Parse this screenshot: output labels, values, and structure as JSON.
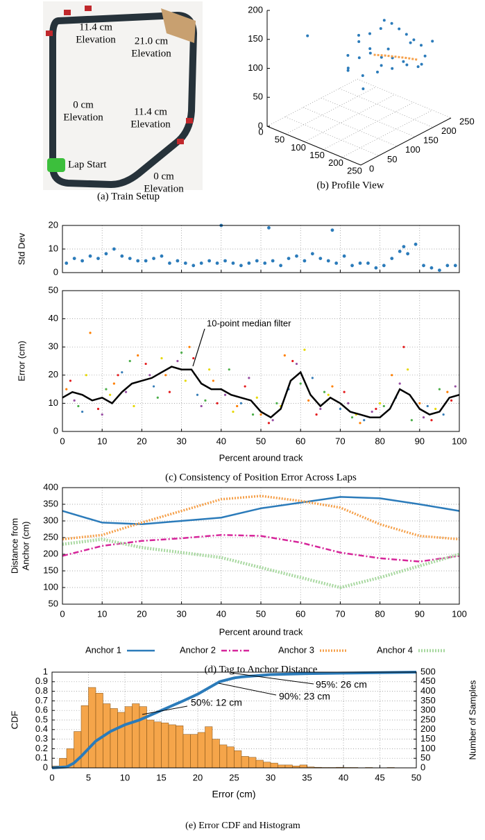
{
  "photo": {
    "labels": [
      [
        "11.4 cm",
        "Elevation"
      ],
      [
        "21.0 cm",
        "Elevation"
      ],
      [
        "0 cm",
        "Elevation"
      ],
      [
        "11.4 cm",
        "Elevation"
      ],
      [
        "Lap Start"
      ],
      [
        "0 cm",
        "Elevation"
      ]
    ],
    "caption": "(a) Train Setup"
  },
  "chart_data": [
    {
      "type": "scatter3d",
      "caption": "(b) Profile View",
      "xlim": [
        0,
        250
      ],
      "ylim": [
        0,
        250
      ],
      "zlim": [
        0,
        200
      ],
      "xticks": [
        0,
        50,
        100,
        150,
        200,
        250
      ],
      "yticks": [
        0,
        50,
        100,
        150,
        200,
        250
      ],
      "zticks": [
        0,
        50,
        100,
        150,
        200
      ],
      "grid": true,
      "series": [
        {
          "color": "#2b7bba",
          "mode": "markers",
          "x": [
            50,
            100,
            110,
            120,
            130,
            140,
            150,
            160,
            170,
            180,
            200,
            210,
            220,
            200,
            190,
            180,
            160,
            140,
            120,
            110,
            130,
            150,
            170,
            190,
            150,
            130,
            170,
            190,
            100,
            120,
            210,
            160
          ],
          "y": [
            60,
            120,
            140,
            160,
            180,
            200,
            210,
            220,
            230,
            240,
            230,
            210,
            190,
            170,
            150,
            130,
            120,
            110,
            100,
            110,
            130,
            150,
            170,
            190,
            180,
            150,
            140,
            200,
            150,
            200,
            240,
            100
          ],
          "z": [
            150,
            110,
            130,
            140,
            145,
            150,
            140,
            130,
            120,
            110,
            100,
            95,
            100,
            110,
            120,
            125,
            130,
            120,
            100,
            90,
            80,
            85,
            90,
            95,
            115,
            120,
            105,
            130,
            135,
            150,
            125,
            75
          ]
        },
        {
          "color": "#f5a04a",
          "mode": "line",
          "x": [
            140,
            155,
            170,
            185,
            200
          ],
          "y": [
            150,
            165,
            180,
            195,
            210
          ],
          "z": [
            112,
            110,
            107,
            104,
            100
          ]
        }
      ]
    },
    {
      "type": "scatter",
      "ylabel": "Std Dev",
      "xlim": [
        0,
        100
      ],
      "ylim": [
        0,
        20
      ],
      "xticks": [
        0,
        10,
        20,
        30,
        40,
        50,
        60,
        70,
        80,
        90,
        100
      ],
      "yticks": [
        0,
        10,
        20
      ],
      "grid": true,
      "series": [
        {
          "color": "#2b7bba",
          "x": [
            1,
            3,
            5,
            7,
            9,
            11,
            13,
            15,
            17,
            19,
            21,
            23,
            25,
            27,
            29,
            31,
            33,
            35,
            37,
            39,
            40,
            41,
            43,
            45,
            47,
            49,
            51,
            52,
            53,
            55,
            57,
            59,
            61,
            63,
            65,
            67,
            68,
            69,
            71,
            73,
            75,
            77,
            79,
            81,
            83,
            85,
            86,
            87,
            89,
            91,
            93,
            95,
            97,
            99
          ],
          "values": [
            4,
            6,
            5,
            7,
            6,
            8,
            10,
            7,
            6,
            5,
            5,
            6,
            7,
            4,
            5,
            4,
            3,
            4,
            5,
            4,
            20,
            5,
            4,
            3,
            4,
            5,
            4,
            19,
            5,
            3,
            6,
            7,
            5,
            8,
            6,
            5,
            18,
            4,
            7,
            3,
            4,
            4,
            2,
            3,
            6,
            9,
            11,
            8,
            12,
            3,
            2,
            1,
            3,
            3
          ]
        }
      ]
    },
    {
      "type": "scatter",
      "ylabel": "Error (cm)",
      "xlabel": "Percent around track",
      "caption": "(c) Consistency of Position Error Across Laps",
      "annotation": "10-point median filter",
      "xlim": [
        0,
        100
      ],
      "ylim": [
        0,
        50
      ],
      "xticks": [
        0,
        10,
        20,
        30,
        40,
        50,
        60,
        70,
        80,
        90,
        100
      ],
      "yticks": [
        0,
        10,
        20,
        30,
        40,
        50
      ],
      "grid": true,
      "series": [
        {
          "color": "#e41a1c",
          "x": [
            2,
            9,
            14,
            21,
            27,
            33,
            39,
            46,
            52,
            58,
            64,
            71,
            79,
            86,
            93,
            98
          ],
          "values": [
            18,
            8,
            20,
            24,
            14,
            26,
            10,
            16,
            3,
            25,
            6,
            14,
            8,
            30,
            4,
            11
          ]
        },
        {
          "color": "#4daf4a",
          "x": [
            4,
            11,
            17,
            24,
            30,
            36,
            42,
            48,
            54,
            60,
            66,
            73,
            81,
            88,
            95
          ],
          "values": [
            9,
            15,
            25,
            12,
            28,
            11,
            22,
            6,
            10,
            17,
            14,
            5,
            9,
            4,
            15
          ]
        },
        {
          "color": "#ff7f00",
          "x": [
            1,
            7,
            13,
            19,
            26,
            32,
            38,
            44,
            50,
            56,
            62,
            68,
            75,
            83,
            90,
            97
          ],
          "values": [
            15,
            35,
            17,
            27,
            20,
            30,
            18,
            9,
            6,
            27,
            11,
            16,
            3,
            20,
            10,
            14
          ]
        },
        {
          "color": "#984ea3",
          "x": [
            3,
            10,
            16,
            22,
            29,
            35,
            41,
            47,
            53,
            59,
            65,
            72,
            78,
            85,
            91,
            99
          ],
          "values": [
            11,
            6,
            14,
            20,
            25,
            9,
            13,
            19,
            4,
            24,
            8,
            10,
            7,
            17,
            5,
            16
          ]
        },
        {
          "color": "#e6d800",
          "x": [
            6,
            12,
            18,
            25,
            31,
            37,
            43,
            49,
            55,
            61,
            67,
            74,
            80,
            87,
            94
          ],
          "values": [
            20,
            13,
            9,
            26,
            18,
            22,
            7,
            12,
            9,
            29,
            13,
            6,
            10,
            22,
            8
          ]
        },
        {
          "color": "#377eb8",
          "x": [
            5,
            15,
            23,
            34,
            45,
            57,
            63,
            70,
            76,
            84,
            92,
            96
          ],
          "values": [
            7,
            21,
            16,
            13,
            10,
            15,
            19,
            8,
            4,
            12,
            9,
            6
          ]
        }
      ],
      "median": {
        "color": "#000000",
        "x": [
          0,
          2.5,
          5,
          7.5,
          10,
          12.5,
          15,
          17.5,
          20,
          22.5,
          25,
          27.5,
          30,
          32.5,
          35,
          37.5,
          40,
          42.5,
          45,
          47.5,
          50,
          52.5,
          55,
          57.5,
          60,
          62.5,
          65,
          67.5,
          70,
          72.5,
          75,
          77.5,
          80,
          82.5,
          85,
          87.5,
          90,
          92.5,
          95,
          97.5,
          100
        ],
        "values": [
          12,
          14,
          13,
          11,
          12,
          10,
          14,
          17,
          18,
          19,
          21,
          23,
          22,
          22,
          17,
          15,
          15,
          13,
          12,
          11,
          7,
          5,
          8,
          18,
          21,
          13,
          9,
          12,
          10,
          7,
          6,
          5,
          5,
          8,
          15,
          13,
          8,
          6,
          7,
          12,
          13
        ]
      }
    },
    {
      "type": "line",
      "ylabel": [
        "Distance from",
        "Anchor (cm)"
      ],
      "xlabel": "Percent around track",
      "caption": "(d) Tag to Anchor Distance",
      "xlim": [
        0,
        100
      ],
      "ylim": [
        50,
        400
      ],
      "xticks": [
        0,
        10,
        20,
        30,
        40,
        50,
        60,
        70,
        80,
        90,
        100
      ],
      "yticks": [
        50,
        100,
        150,
        200,
        250,
        300,
        350,
        400
      ],
      "grid": true,
      "x": [
        0,
        10,
        20,
        30,
        40,
        50,
        60,
        70,
        80,
        90,
        100
      ],
      "series": [
        {
          "name": "Anchor 1",
          "color": "#2b7bba",
          "style": "solid",
          "values": [
            330,
            295,
            290,
            300,
            310,
            338,
            355,
            372,
            368,
            350,
            330
          ]
        },
        {
          "name": "Anchor 2",
          "color": "#d6259a",
          "style": "dashdot",
          "values": [
            195,
            225,
            240,
            248,
            258,
            255,
            235,
            205,
            188,
            178,
            195
          ]
        },
        {
          "name": "Anchor 3",
          "color": "#f5a04a",
          "style": "dotted",
          "values": [
            245,
            258,
            295,
            330,
            365,
            375,
            360,
            340,
            290,
            255,
            245
          ]
        },
        {
          "name": "Anchor 4",
          "color": "#a8d8a0",
          "style": "dotted",
          "values": [
            230,
            245,
            220,
            205,
            190,
            160,
            130,
            100,
            130,
            165,
            200
          ]
        }
      ]
    },
    {
      "type": "histogram",
      "ylabel": "CDF",
      "y2label": "Number of Samples",
      "xlabel": "Error (cm)",
      "caption": "(e) Error CDF and Histogram",
      "xlim": [
        0,
        50
      ],
      "ylim": [
        0,
        1
      ],
      "y2lim": [
        0,
        500
      ],
      "xticks": [
        0,
        5,
        10,
        15,
        20,
        25,
        30,
        35,
        40,
        45,
        50
      ],
      "yticks": [
        0,
        0.1,
        0.2,
        0.3,
        0.4,
        0.5,
        0.6,
        0.7,
        0.8,
        0.9,
        1
      ],
      "y2ticks": [
        0,
        50,
        100,
        150,
        200,
        250,
        300,
        350,
        400,
        450,
        500
      ],
      "grid": true,
      "bins": [
        0,
        1,
        2,
        3,
        4,
        5,
        6,
        7,
        8,
        9,
        10,
        11,
        12,
        13,
        14,
        15,
        16,
        17,
        18,
        19,
        20,
        21,
        22,
        23,
        24,
        25,
        26,
        27,
        28,
        29,
        30,
        31,
        32,
        33,
        34,
        35,
        36,
        37,
        38,
        39,
        40,
        41,
        42,
        43,
        44,
        45,
        46,
        47,
        48,
        49,
        50
      ],
      "counts": [
        10,
        50,
        100,
        190,
        325,
        420,
        390,
        335,
        310,
        290,
        320,
        335,
        320,
        250,
        240,
        235,
        225,
        220,
        175,
        175,
        185,
        215,
        150,
        120,
        110,
        90,
        60,
        55,
        40,
        30,
        25,
        15,
        15,
        10,
        15,
        5,
        3,
        2,
        2,
        3,
        2,
        2,
        1,
        2,
        1,
        1,
        2,
        1,
        1,
        1
      ],
      "color": "#f5a54a",
      "cdf": {
        "color": "#2b7bba",
        "x": [
          0,
          2,
          3,
          4,
          5,
          6,
          8,
          10,
          12,
          15,
          18,
          20,
          23,
          25,
          26,
          30,
          35,
          40,
          50
        ],
        "values": [
          0,
          0.01,
          0.05,
          0.12,
          0.2,
          0.28,
          0.38,
          0.45,
          0.5,
          0.6,
          0.7,
          0.77,
          0.9,
          0.94,
          0.95,
          0.975,
          0.985,
          0.99,
          1
        ]
      },
      "annotations": [
        "50%: 12 cm",
        "90%: 23 cm",
        "95%: 26 cm"
      ]
    }
  ]
}
